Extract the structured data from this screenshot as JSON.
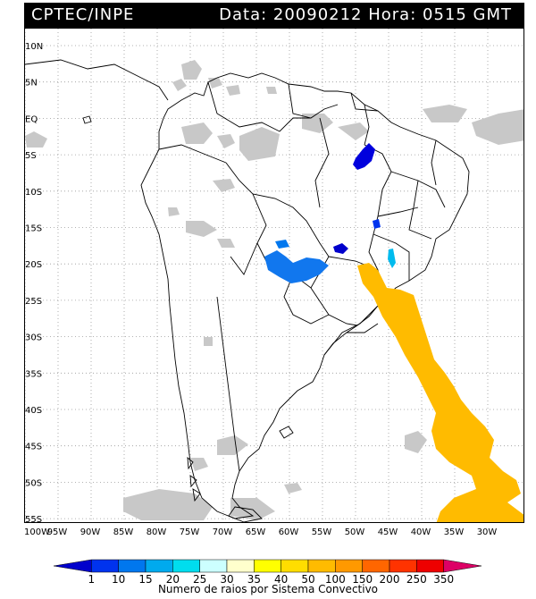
{
  "header": {
    "source": "CPTEC/INPE",
    "datetime": "Data: 20090212 Hora: 0515 GMT"
  },
  "map": {
    "lat_labels": [
      "10N",
      "5N",
      "EQ",
      "5S",
      "10S",
      "15S",
      "20S",
      "25S",
      "30S",
      "35S",
      "40S",
      "45S",
      "50S",
      "55S"
    ],
    "lon_labels": [
      "100W",
      "95W",
      "90W",
      "85W",
      "80W",
      "75W",
      "70W",
      "65W",
      "60W",
      "55W",
      "50W",
      "45W",
      "40W",
      "35W",
      "30W"
    ],
    "layers": {
      "satellite_clouds_color": "#c0c0c0",
      "coastline_color": "#000000",
      "grid": "dotted"
    }
  },
  "colorbar": {
    "ticks": [
      "1",
      "10",
      "15",
      "20",
      "25",
      "30",
      "35",
      "40",
      "50",
      "100",
      "150",
      "200",
      "250",
      "350"
    ],
    "colors": [
      "#0000cc",
      "#0033ee",
      "#0077ee",
      "#00aaee",
      "#00ddee",
      "#ccffff",
      "#ffffcc",
      "#ffff00",
      "#ffdd00",
      "#ffbb00",
      "#ff9900",
      "#ff6600",
      "#ff3300",
      "#ee0000",
      "#dd0066"
    ],
    "caption": "Numero de raios por Sistema Convectivo"
  },
  "convective_systems": [
    {
      "region": "northeast-brazil",
      "class": "1"
    },
    {
      "region": "central-brazil",
      "class": "1"
    },
    {
      "region": "paraguay-bolivia",
      "class": "10"
    },
    {
      "region": "southeast-brazil",
      "class": "25"
    },
    {
      "region": "south-atlantic",
      "class": "50"
    }
  ]
}
